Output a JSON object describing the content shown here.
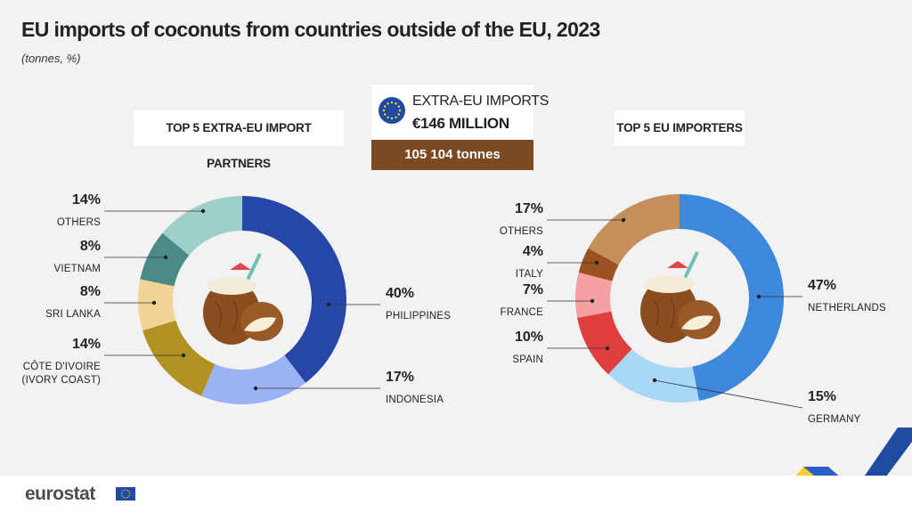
{
  "title": "EU imports of coconuts from countries outside of the EU, 2023",
  "subtitle": "(tonnes, %)",
  "center_box": {
    "line1": "EXTRA-EU IMPORTS",
    "line2": "€146 MILLION",
    "tonnes": "105 104 tonnes"
  },
  "footer": {
    "logo": "eurostat"
  },
  "colors": {
    "background": "#f2f2f2",
    "tonnes_bar": "#7b4a22",
    "eu_flag": "#1f4ba0",
    "eu_star": "#f4d82e"
  },
  "icons": [
    "eu-flag-icon",
    "coconut-drink-icon",
    "eurostat-logo"
  ],
  "chart_data": [
    {
      "type": "pie",
      "variant": "donut",
      "title": "TOP 5 EXTRA-EU IMPORT PARTNERS",
      "slices": [
        {
          "pct": "40%",
          "value": 40,
          "label": [
            "PHILIPPINES"
          ],
          "color": "#2747a8"
        },
        {
          "pct": "17%",
          "value": 17,
          "label": [
            "INDONESIA"
          ],
          "color": "#9bb2f4"
        },
        {
          "pct": "14%",
          "value": 14,
          "label": [
            "CÔTE D'IVOIRE",
            "(IVORY COAST)"
          ],
          "color": "#b09222"
        },
        {
          "pct": "8%",
          "value": 8,
          "label": [
            "SRI LANKA"
          ],
          "color": "#f2d596"
        },
        {
          "pct": "8%",
          "value": 8,
          "label": [
            "VIETNAM"
          ],
          "color": "#4a8a87"
        },
        {
          "pct": "14%",
          "value": 14,
          "label": [
            "OTHERS"
          ],
          "color": "#9fcfc9"
        }
      ]
    },
    {
      "type": "pie",
      "variant": "donut",
      "title": "TOP 5 EU IMPORTERS",
      "slices": [
        {
          "pct": "47%",
          "value": 47,
          "label": [
            "NETHERLANDS"
          ],
          "color": "#3d87dd"
        },
        {
          "pct": "15%",
          "value": 15,
          "label": [
            "GERMANY"
          ],
          "color": "#a9d8f6"
        },
        {
          "pct": "10%",
          "value": 10,
          "label": [
            "SPAIN"
          ],
          "color": "#de3e3e"
        },
        {
          "pct": "7%",
          "value": 7,
          "label": [
            "FRANCE"
          ],
          "color": "#f5a1a1"
        },
        {
          "pct": "4%",
          "value": 4,
          "label": [
            "ITALY"
          ],
          "color": "#9c5220"
        },
        {
          "pct": "17%",
          "value": 17,
          "label": [
            "OTHERS"
          ],
          "color": "#c58f5c"
        }
      ]
    }
  ]
}
